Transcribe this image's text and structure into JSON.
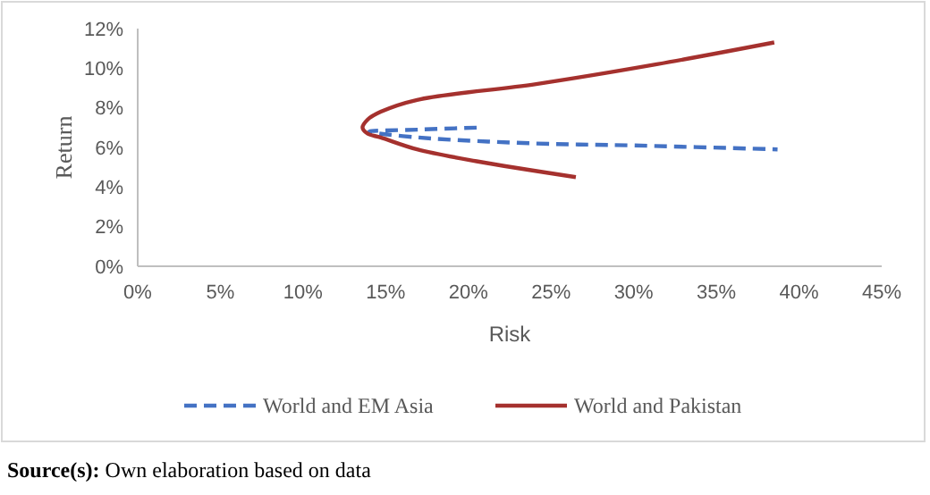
{
  "chart_data": {
    "type": "line",
    "xlabel": "Risk",
    "ylabel": "Return",
    "xlim": [
      0,
      45
    ],
    "ylim": [
      0,
      12
    ],
    "xticks": [
      {
        "value": 0,
        "label": "0%"
      },
      {
        "value": 5,
        "label": "5%"
      },
      {
        "value": 10,
        "label": "10%"
      },
      {
        "value": 15,
        "label": "15%"
      },
      {
        "value": 20,
        "label": "20%"
      },
      {
        "value": 25,
        "label": "25%"
      },
      {
        "value": 30,
        "label": "30%"
      },
      {
        "value": 35,
        "label": "35%"
      },
      {
        "value": 40,
        "label": "40%"
      },
      {
        "value": 45,
        "label": "45%"
      }
    ],
    "yticks": [
      {
        "value": 0,
        "label": "0%"
      },
      {
        "value": 2,
        "label": "2%"
      },
      {
        "value": 4,
        "label": "4%"
      },
      {
        "value": 6,
        "label": "6%"
      },
      {
        "value": 8,
        "label": "8%"
      },
      {
        "value": 10,
        "label": "10%"
      },
      {
        "value": 12,
        "label": "12%"
      }
    ],
    "series": [
      {
        "name": "World and EM Asia",
        "color": "#4472c4",
        "line_style": "dashed",
        "x": [
          20.5,
          17,
          14.0,
          17,
          24.1,
          30,
          38.7
        ],
        "values": [
          7.0,
          6.9,
          6.8,
          6.5,
          6.2,
          6.1,
          5.9
        ]
      },
      {
        "name": "World and Pakistan",
        "color": "#a5312e",
        "line_style": "solid",
        "x": [
          38.5,
          31.4,
          24.1,
          16.9,
          14.7,
          13.9,
          13.6,
          13.9,
          14.7,
          16.9,
          20.5,
          26.5
        ],
        "values": [
          11.3,
          10.2,
          9.2,
          8.4,
          7.8,
          7.4,
          7.0,
          6.7,
          6.5,
          5.9,
          5.3,
          4.5
        ]
      }
    ],
    "grid": false,
    "legend": "bottom",
    "marker": "none",
    "annotations": [
      "Source(s): Own elaboration based on data"
    ]
  }
}
